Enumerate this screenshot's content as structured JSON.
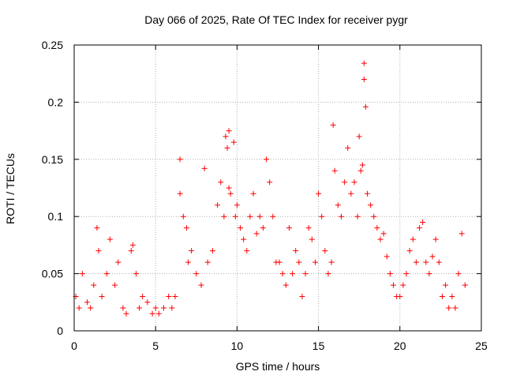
{
  "chart_data": {
    "type": "scatter",
    "title": "Day 066 of 2025, Rate Of TEC Index for receiver pygr",
    "xlabel": "GPS time / hours",
    "ylabel": "ROTI / TECUs",
    "xlim": [
      0,
      25
    ],
    "ylim": [
      0,
      0.25
    ],
    "xticks": [
      "0",
      "5",
      "10",
      "15",
      "20",
      "25"
    ],
    "yticks": [
      "0",
      "0.05",
      "0.1",
      "0.15",
      "0.2",
      "0.25"
    ],
    "grid": true,
    "marker": "+",
    "color": "#ff0000",
    "x": [
      0.1,
      0.3,
      0.5,
      0.8,
      1.0,
      1.2,
      1.4,
      1.5,
      1.7,
      2.0,
      2.2,
      2.5,
      2.7,
      3.0,
      3.2,
      3.5,
      3.6,
      3.8,
      4.0,
      4.2,
      4.5,
      4.8,
      5.0,
      5.2,
      5.5,
      5.8,
      6.0,
      6.2,
      6.5,
      6.5,
      6.7,
      6.9,
      7.0,
      7.2,
      7.5,
      7.8,
      8.0,
      8.2,
      8.5,
      8.8,
      9.0,
      9.2,
      9.3,
      9.4,
      9.5,
      9.5,
      9.6,
      9.8,
      9.9,
      10.0,
      10.2,
      10.4,
      10.6,
      10.8,
      11.0,
      11.2,
      11.4,
      11.6,
      11.8,
      12.0,
      12.2,
      12.4,
      12.6,
      12.8,
      13.0,
      13.2,
      13.4,
      13.6,
      13.8,
      14.0,
      14.2,
      14.4,
      14.6,
      14.8,
      15.0,
      15.2,
      15.4,
      15.6,
      15.8,
      15.9,
      16.0,
      16.2,
      16.4,
      16.6,
      16.8,
      17.0,
      17.2,
      17.4,
      17.5,
      17.6,
      17.7,
      17.8,
      17.8,
      17.9,
      18.0,
      18.2,
      18.4,
      18.6,
      18.8,
      19.0,
      19.2,
      19.4,
      19.6,
      19.8,
      20.0,
      20.2,
      20.4,
      20.6,
      20.8,
      21.0,
      21.2,
      21.4,
      21.6,
      21.8,
      22.0,
      22.2,
      22.4,
      22.6,
      22.8,
      23.0,
      23.2,
      23.4,
      23.6,
      23.8,
      24.0
    ],
    "y": [
      0.03,
      0.02,
      0.05,
      0.025,
      0.02,
      0.04,
      0.09,
      0.07,
      0.03,
      0.05,
      0.08,
      0.04,
      0.06,
      0.02,
      0.015,
      0.07,
      0.075,
      0.05,
      0.02,
      0.03,
      0.025,
      0.015,
      0.02,
      0.015,
      0.02,
      0.03,
      0.02,
      0.03,
      0.15,
      0.12,
      0.1,
      0.09,
      0.06,
      0.07,
      0.05,
      0.04,
      0.142,
      0.06,
      0.07,
      0.11,
      0.13,
      0.1,
      0.17,
      0.16,
      0.175,
      0.125,
      0.12,
      0.165,
      0.1,
      0.11,
      0.09,
      0.08,
      0.07,
      0.1,
      0.12,
      0.085,
      0.1,
      0.09,
      0.15,
      0.13,
      0.1,
      0.06,
      0.06,
      0.05,
      0.04,
      0.09,
      0.05,
      0.07,
      0.06,
      0.03,
      0.05,
      0.09,
      0.08,
      0.06,
      0.12,
      0.1,
      0.07,
      0.05,
      0.06,
      0.18,
      0.14,
      0.11,
      0.1,
      0.13,
      0.16,
      0.12,
      0.13,
      0.1,
      0.17,
      0.14,
      0.145,
      0.234,
      0.22,
      0.196,
      0.12,
      0.11,
      0.1,
      0.09,
      0.08,
      0.085,
      0.065,
      0.05,
      0.04,
      0.03,
      0.03,
      0.04,
      0.05,
      0.07,
      0.08,
      0.06,
      0.09,
      0.095,
      0.06,
      0.05,
      0.065,
      0.08,
      0.06,
      0.03,
      0.04,
      0.02,
      0.03,
      0.02,
      0.05,
      0.085,
      0.04
    ]
  }
}
